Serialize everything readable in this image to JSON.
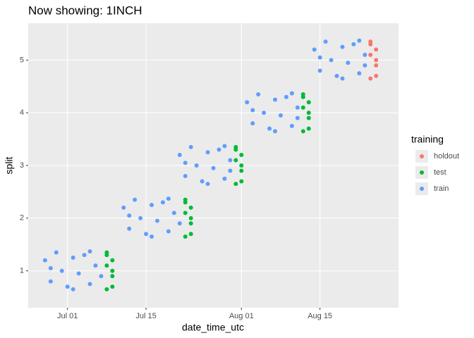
{
  "chart_data": {
    "type": "scatter",
    "title": "Now showing: 1INCH",
    "x_label": "date_time_utc",
    "y_label": "split",
    "legend_title": "training",
    "xlim": [
      "Jun 24",
      "Aug 29"
    ],
    "xticks": [
      "Jul 01",
      "Jul 15",
      "Aug 01",
      "Aug 15"
    ],
    "ylim": [
      0.3,
      5.7
    ],
    "yticks": [
      1,
      2,
      3,
      4,
      5
    ],
    "grid": true,
    "legend": "right",
    "series": [
      {
        "name": "holdout",
        "color": "#F8766D",
        "x": [
          "Aug 24",
          "Aug 25",
          "Aug 24",
          "Aug 25",
          "Aug 24",
          "Aug 25",
          "Aug 24",
          "Aug 25"
        ],
        "values": [
          5.3,
          4.7,
          5.1,
          4.9,
          4.65,
          5.2,
          5.35,
          5
        ]
      },
      {
        "name": "test",
        "color": "#00BA38",
        "x": [
          "Jul 08",
          "Jul 09",
          "Jul 08",
          "Jul 09",
          "Jul 08",
          "Jul 09",
          "Jul 08",
          "Jul 09",
          "Jul 22",
          "Jul 23",
          "Jul 22",
          "Jul 23",
          "Jul 22",
          "Jul 23",
          "Jul 22",
          "Jul 23",
          "Jul 31",
          "Aug 01",
          "Jul 31",
          "Aug 01",
          "Jul 31",
          "Aug 01",
          "Jul 31",
          "Aug 01",
          "Aug 12",
          "Aug 13",
          "Aug 12",
          "Aug 13",
          "Aug 12",
          "Aug 13",
          "Aug 12",
          "Aug 13"
        ],
        "values": [
          1.3,
          0.7,
          1.1,
          0.9,
          0.65,
          1.2,
          1.35,
          1,
          2.3,
          1.7,
          2.1,
          1.9,
          1.65,
          2.2,
          2.35,
          2,
          3.3,
          2.7,
          3.1,
          2.9,
          2.65,
          3.2,
          3.35,
          3,
          4.3,
          3.7,
          4.1,
          3.9,
          3.65,
          4.2,
          4.35,
          4
        ]
      },
      {
        "name": "train",
        "color": "#619CFF",
        "x": [
          "Jun 27",
          "Jun 28",
          "Jun 29",
          "Jun 30",
          "Jul 01",
          "Jul 02",
          "Jul 03",
          "Jul 04",
          "Jul 05",
          "Jul 06",
          "Jul 07",
          "Jun 28",
          "Jul 02",
          "Jul 05",
          "Jul 11",
          "Jul 12",
          "Jul 13",
          "Jul 14",
          "Jul 15",
          "Jul 16",
          "Jul 17",
          "Jul 18",
          "Jul 19",
          "Jul 20",
          "Jul 21",
          "Jul 12",
          "Jul 16",
          "Jul 19",
          "Jul 21",
          "Jul 22",
          "Jul 23",
          "Jul 24",
          "Jul 25",
          "Jul 26",
          "Jul 27",
          "Jul 28",
          "Jul 29",
          "Jul 30",
          "Jul 30",
          "Jul 22",
          "Jul 26",
          "Jul 29",
          "Aug 02",
          "Aug 03",
          "Aug 04",
          "Aug 05",
          "Aug 06",
          "Aug 07",
          "Aug 08",
          "Aug 09",
          "Aug 10",
          "Aug 11",
          "Aug 11",
          "Aug 03",
          "Aug 07",
          "Aug 10",
          "Aug 14",
          "Aug 15",
          "Aug 16",
          "Aug 17",
          "Aug 18",
          "Aug 19",
          "Aug 20",
          "Aug 21",
          "Aug 22",
          "Aug 23",
          "Aug 23",
          "Aug 15",
          "Aug 19",
          "Aug 22"
        ],
        "values": [
          1.2,
          0.8,
          1.35,
          1,
          0.7,
          1.25,
          0.95,
          1.3,
          0.75,
          1.1,
          0.9,
          1.05,
          0.65,
          1.37,
          2.2,
          1.8,
          2.35,
          2,
          1.7,
          2.25,
          1.95,
          2.3,
          1.75,
          2.1,
          1.9,
          2.05,
          1.65,
          2.37,
          3.2,
          2.8,
          3.35,
          3,
          2.7,
          3.25,
          2.95,
          3.3,
          2.75,
          3.1,
          2.9,
          3.05,
          2.65,
          3.37,
          4.2,
          3.8,
          4.35,
          4,
          3.7,
          4.25,
          3.95,
          4.3,
          3.75,
          4.1,
          3.9,
          4.05,
          3.65,
          4.37,
          5.2,
          4.8,
          5.35,
          5,
          4.7,
          5.25,
          4.95,
          5.3,
          4.75,
          5.1,
          4.9,
          5.05,
          4.65,
          5.37
        ]
      }
    ]
  }
}
